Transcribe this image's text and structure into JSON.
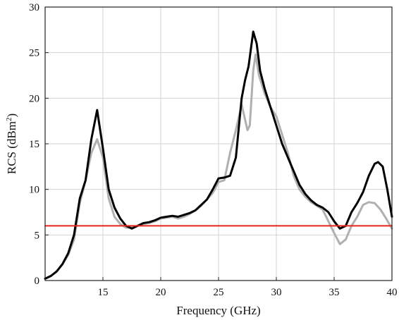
{
  "chart_data": {
    "type": "line",
    "xlabel": "Frequency (GHz)",
    "ylabel_main": "RCS (dBm",
    "ylabel_sup": "2",
    "ylabel_tail": ")",
    "xlim": [
      10,
      40
    ],
    "ylim": [
      0,
      30
    ],
    "x_ticks": [
      15,
      20,
      25,
      30,
      35,
      40
    ],
    "y_ticks": [
      0,
      5,
      10,
      15,
      20,
      25,
      30
    ],
    "grid": true,
    "series": [
      {
        "color": "#000000",
        "points": [
          [
            10,
            0.2
          ],
          [
            10.5,
            0.5
          ],
          [
            11,
            1
          ],
          [
            11.5,
            1.8
          ],
          [
            12,
            3
          ],
          [
            12.5,
            5
          ],
          [
            13,
            9
          ],
          [
            13.5,
            11
          ],
          [
            14,
            15.5
          ],
          [
            14.5,
            18.7
          ],
          [
            15,
            14.5
          ],
          [
            15.5,
            10
          ],
          [
            16,
            8
          ],
          [
            16.5,
            6.8
          ],
          [
            17,
            6
          ],
          [
            17.5,
            5.7
          ],
          [
            18,
            6
          ],
          [
            18.5,
            6.3
          ],
          [
            19,
            6.4
          ],
          [
            19.5,
            6.6
          ],
          [
            20,
            6.9
          ],
          [
            20.5,
            7
          ],
          [
            21,
            7.1
          ],
          [
            21.5,
            7
          ],
          [
            22,
            7.2
          ],
          [
            22.5,
            7.4
          ],
          [
            23,
            7.7
          ],
          [
            23.5,
            8.3
          ],
          [
            24,
            8.9
          ],
          [
            24.5,
            10
          ],
          [
            25,
            11.2
          ],
          [
            25.5,
            11.3
          ],
          [
            26,
            11.5
          ],
          [
            26.5,
            13.5
          ],
          [
            27,
            20
          ],
          [
            27.3,
            22
          ],
          [
            27.6,
            23.5
          ],
          [
            28,
            27.3
          ],
          [
            28.3,
            26
          ],
          [
            28.6,
            23
          ],
          [
            29,
            21
          ],
          [
            29.5,
            19
          ],
          [
            30,
            17
          ],
          [
            30.5,
            15
          ],
          [
            31,
            13.5
          ],
          [
            31.5,
            12
          ],
          [
            32,
            10.5
          ],
          [
            32.5,
            9.5
          ],
          [
            33,
            8.8
          ],
          [
            33.5,
            8.3
          ],
          [
            34,
            8
          ],
          [
            34.5,
            7.5
          ],
          [
            35,
            6.5
          ],
          [
            35.5,
            5.7
          ],
          [
            36,
            6
          ],
          [
            36.5,
            7.5
          ],
          [
            37,
            8.5
          ],
          [
            37.5,
            9.7
          ],
          [
            38,
            11.5
          ],
          [
            38.5,
            12.8
          ],
          [
            38.8,
            13
          ],
          [
            39.2,
            12.5
          ],
          [
            39.6,
            10
          ],
          [
            40,
            7
          ]
        ]
      },
      {
        "color": "#b0b0b0",
        "points": [
          [
            10,
            0.2
          ],
          [
            10.5,
            0.5
          ],
          [
            11,
            1
          ],
          [
            11.5,
            1.8
          ],
          [
            12,
            2.8
          ],
          [
            12.5,
            4.5
          ],
          [
            13,
            8.5
          ],
          [
            13.5,
            11
          ],
          [
            14,
            14
          ],
          [
            14.5,
            15.5
          ],
          [
            15,
            13.5
          ],
          [
            15.5,
            9
          ],
          [
            16,
            7
          ],
          [
            16.5,
            6.2
          ],
          [
            17,
            5.8
          ],
          [
            17.5,
            5.8
          ],
          [
            18,
            6
          ],
          [
            18.5,
            6.2
          ],
          [
            19,
            6.3
          ],
          [
            19.5,
            6.5
          ],
          [
            20,
            6.8
          ],
          [
            20.5,
            6.9
          ],
          [
            21,
            7
          ],
          [
            21.5,
            6.8
          ],
          [
            22,
            7
          ],
          [
            22.5,
            7.3
          ],
          [
            23,
            7.7
          ],
          [
            23.5,
            8.2
          ],
          [
            24,
            8.9
          ],
          [
            24.5,
            9.6
          ],
          [
            25,
            10.8
          ],
          [
            25.5,
            11
          ],
          [
            26,
            14
          ],
          [
            26.5,
            16.5
          ],
          [
            27,
            19.3
          ],
          [
            27.5,
            16.5
          ],
          [
            27.7,
            17
          ],
          [
            28,
            23
          ],
          [
            28.2,
            24.8
          ],
          [
            28.5,
            22.5
          ],
          [
            29,
            20.5
          ],
          [
            29.5,
            19
          ],
          [
            30,
            18
          ],
          [
            30.5,
            16
          ],
          [
            31,
            14
          ],
          [
            31.5,
            11.5
          ],
          [
            32,
            10
          ],
          [
            32.5,
            9.2
          ],
          [
            33,
            8.6
          ],
          [
            33.5,
            8.2
          ],
          [
            34,
            7.8
          ],
          [
            34.5,
            6.5
          ],
          [
            35,
            5.2
          ],
          [
            35.5,
            4
          ],
          [
            36,
            4.5
          ],
          [
            36.5,
            6
          ],
          [
            37,
            7
          ],
          [
            37.5,
            8.3
          ],
          [
            38,
            8.6
          ],
          [
            38.5,
            8.5
          ],
          [
            39,
            7.8
          ],
          [
            39.5,
            6.8
          ],
          [
            40,
            5.7
          ]
        ]
      },
      {
        "color": "#e8251d",
        "points": [
          [
            10,
            6
          ],
          [
            40,
            6
          ]
        ]
      }
    ]
  }
}
